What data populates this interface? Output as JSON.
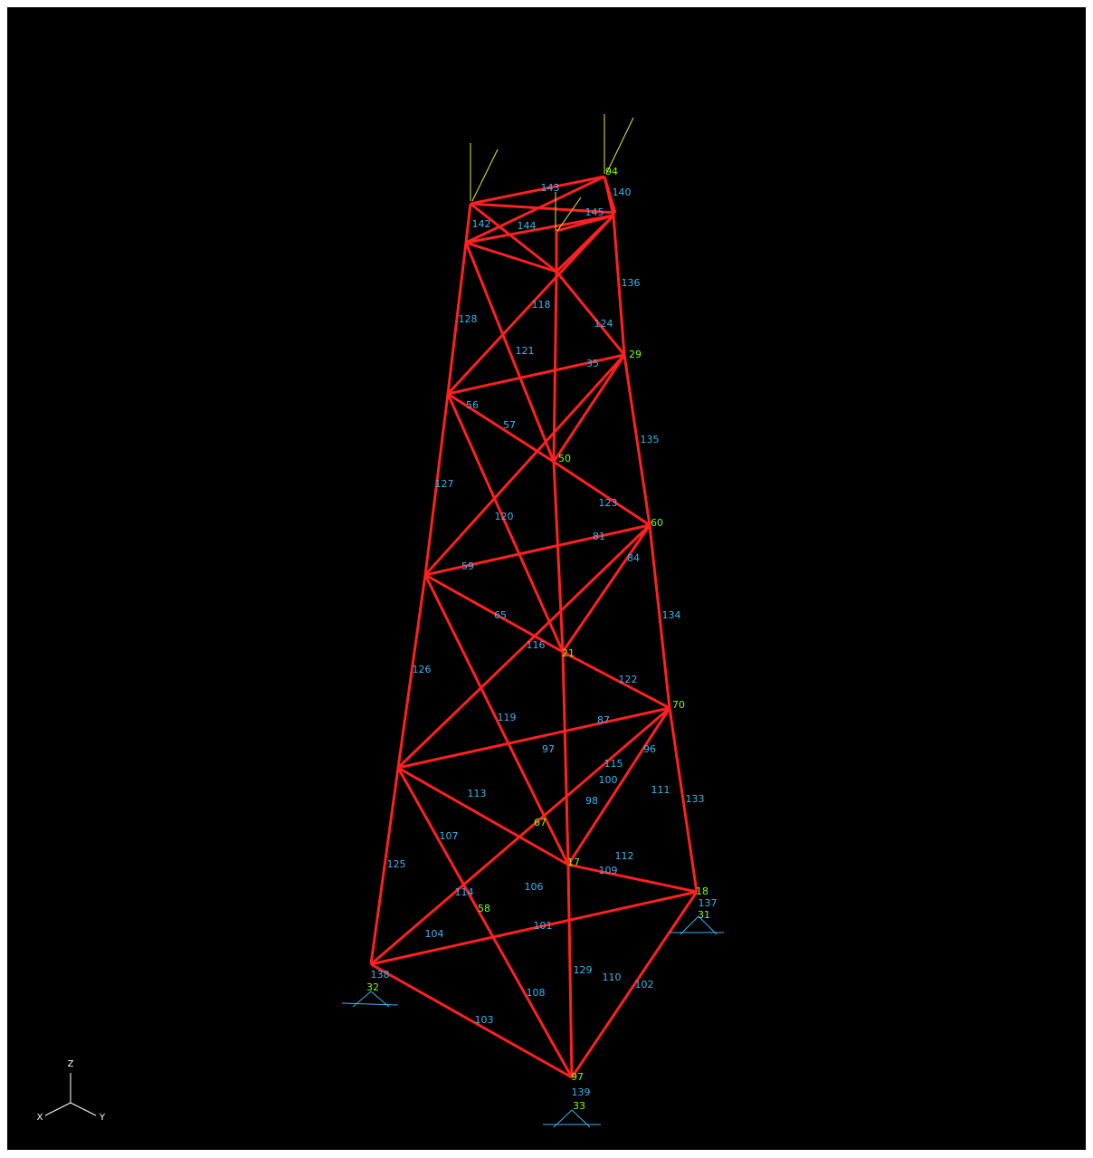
{
  "axes": {
    "z": "Z",
    "x": "X",
    "y": "Y"
  },
  "frame_labels": [
    "143",
    "140",
    "142",
    "144",
    "145",
    "136",
    "128",
    "124",
    "118",
    "121",
    "35",
    "56",
    "57",
    "135",
    "127",
    "123",
    "120",
    "81",
    "59",
    "84",
    "65",
    "134",
    "116",
    "126",
    "122",
    "119",
    "87",
    "97",
    "96",
    "115",
    "100",
    "111",
    "133",
    "113",
    "98",
    "107",
    "112",
    "109",
    "125",
    "106",
    "114",
    "101",
    "104",
    "129",
    "110",
    "102",
    "108",
    "103",
    "137",
    "138",
    "139"
  ],
  "joint_labels": [
    "94",
    "29",
    "50",
    "60",
    "21",
    "70",
    "17",
    "18",
    "31",
    "32",
    "33",
    "97",
    "67",
    "58"
  ]
}
